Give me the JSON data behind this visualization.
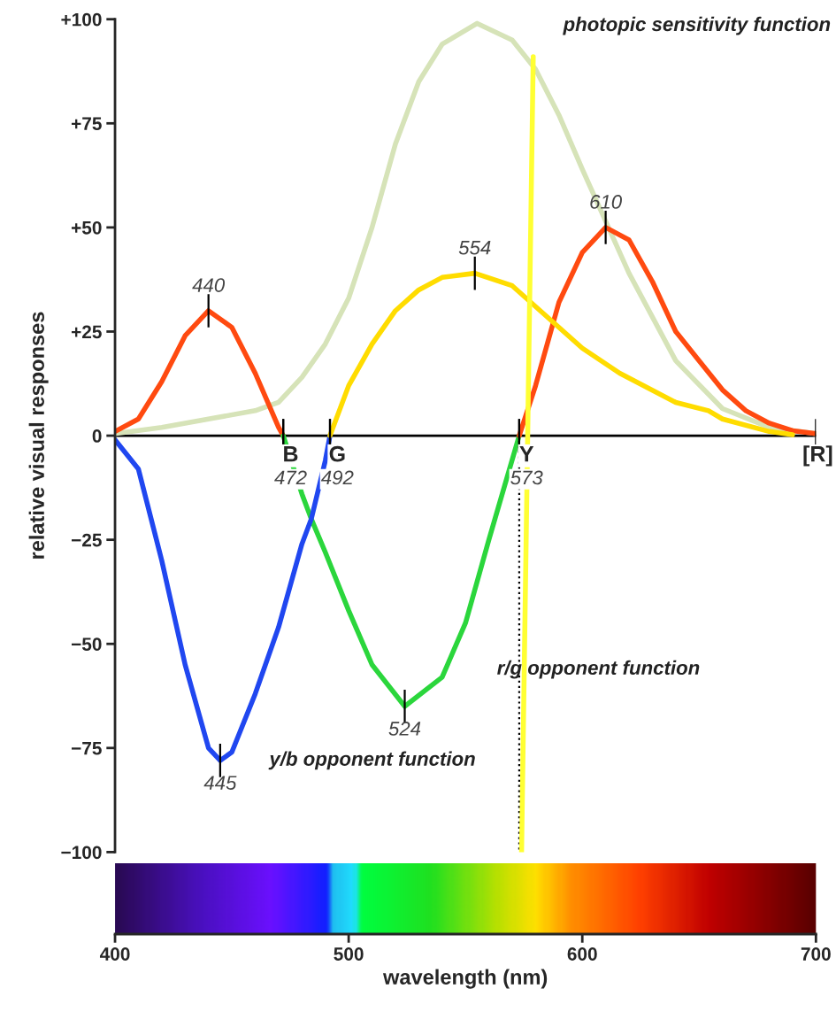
{
  "chart_data": {
    "type": "line",
    "xlabel": "wavelength (nm)",
    "ylabel": "relative visual responses",
    "xlim": [
      400,
      700
    ],
    "xticks": [
      400,
      500,
      600,
      700
    ],
    "ylim": [
      -100,
      100
    ],
    "yticks": [
      {
        "value": 100,
        "label": "+100"
      },
      {
        "value": 75,
        "label": "+75"
      },
      {
        "value": 50,
        "label": "+50"
      },
      {
        "value": 25,
        "label": "+25"
      },
      0,
      {
        "value": -25,
        "label": "−25"
      },
      {
        "value": -50,
        "label": "−50"
      },
      {
        "value": -75,
        "label": "−75"
      },
      {
        "value": -100,
        "label": "−100"
      }
    ],
    "grid": false,
    "legend": false,
    "ref_lines": [
      {
        "axis": "y",
        "value": 0,
        "color": "#000000"
      }
    ],
    "marker": "none",
    "line_style": "solid",
    "series": [
      {
        "name": "photopic sensitivity function",
        "color": "#d6e3b8",
        "x": [
          400,
          420,
          440,
          460,
          470,
          480,
          490,
          500,
          510,
          520,
          530,
          540,
          555,
          570,
          580,
          590,
          600,
          620,
          640,
          660,
          680,
          700
        ],
        "values": [
          0.5,
          2,
          4,
          6,
          8,
          14,
          22,
          33,
          50,
          70,
          85,
          94,
          99,
          95,
          88,
          77,
          64,
          39,
          18,
          6.5,
          2,
          0.5
        ]
      },
      {
        "color": "#ff4a10",
        "x": [
          400,
          410,
          420,
          430,
          440,
          450,
          460,
          470,
          472
        ],
        "values": [
          1,
          4,
          13,
          24,
          30,
          26,
          15,
          2,
          0
        ]
      },
      {
        "name": "r/g opponent function",
        "color": "#2bd63c",
        "x": [
          472,
          480,
          484,
          490,
          500,
          510,
          524,
          540,
          550,
          560,
          573
        ],
        "values": [
          0,
          -14,
          -20,
          -28,
          -42,
          -55,
          -65,
          -58,
          -45,
          -25,
          0
        ]
      },
      {
        "color": "#ff4a10",
        "x": [
          573,
          580,
          590,
          600,
          610,
          620,
          630,
          640,
          650,
          660,
          670,
          680,
          690,
          700
        ],
        "values": [
          0,
          12,
          32,
          44,
          50,
          47,
          37,
          25,
          18,
          11,
          6,
          3,
          1.2,
          0.5
        ]
      },
      {
        "name": "y/b opponent function",
        "color": "#2047f0",
        "x": [
          400,
          410,
          420,
          430,
          440,
          445,
          450,
          460,
          470,
          480,
          484,
          490,
          492
        ],
        "values": [
          -1,
          -8,
          -30,
          -55,
          -75,
          -78,
          -76,
          -62,
          -46,
          -26,
          -20,
          -6,
          0
        ]
      },
      {
        "color": "#ffdc00",
        "x": [
          492,
          500,
          510,
          520,
          530,
          540,
          554,
          570,
          580,
          590,
          600,
          616,
          640,
          654,
          660,
          680,
          690
        ],
        "values": [
          0,
          12,
          22,
          30,
          35,
          38,
          39,
          36,
          31,
          26,
          21,
          15,
          8,
          6,
          4,
          1,
          0.2
        ]
      },
      {
        "color": "#000000",
        "line_style": "dotted",
        "x": [
          573,
          573
        ],
        "values": [
          0,
          -100
        ]
      },
      {
        "color": "#ffff33",
        "x": [
          579,
          574
        ],
        "values": [
          91,
          -100
        ]
      }
    ],
    "annotations": [
      {
        "text": "440",
        "x": 440,
        "y": 30
      },
      {
        "text": "554",
        "x": 554,
        "y": 39
      },
      {
        "text": "610",
        "x": 610,
        "y": 50
      },
      {
        "text": "524",
        "x": 524,
        "y": -65
      },
      {
        "text": "445",
        "x": 445,
        "y": -78
      },
      {
        "text": "B",
        "x": 472,
        "y": 0
      },
      {
        "text": "472",
        "x": 472,
        "y": 0
      },
      {
        "text": "G",
        "x": 492,
        "y": 0
      },
      {
        "text": "492",
        "x": 492,
        "y": 0
      },
      {
        "text": "Y",
        "x": 573,
        "y": 0
      },
      {
        "text": "573",
        "x": 573,
        "y": 0
      },
      {
        "text": "[R]",
        "x": 700,
        "y": 0
      }
    ]
  }
}
